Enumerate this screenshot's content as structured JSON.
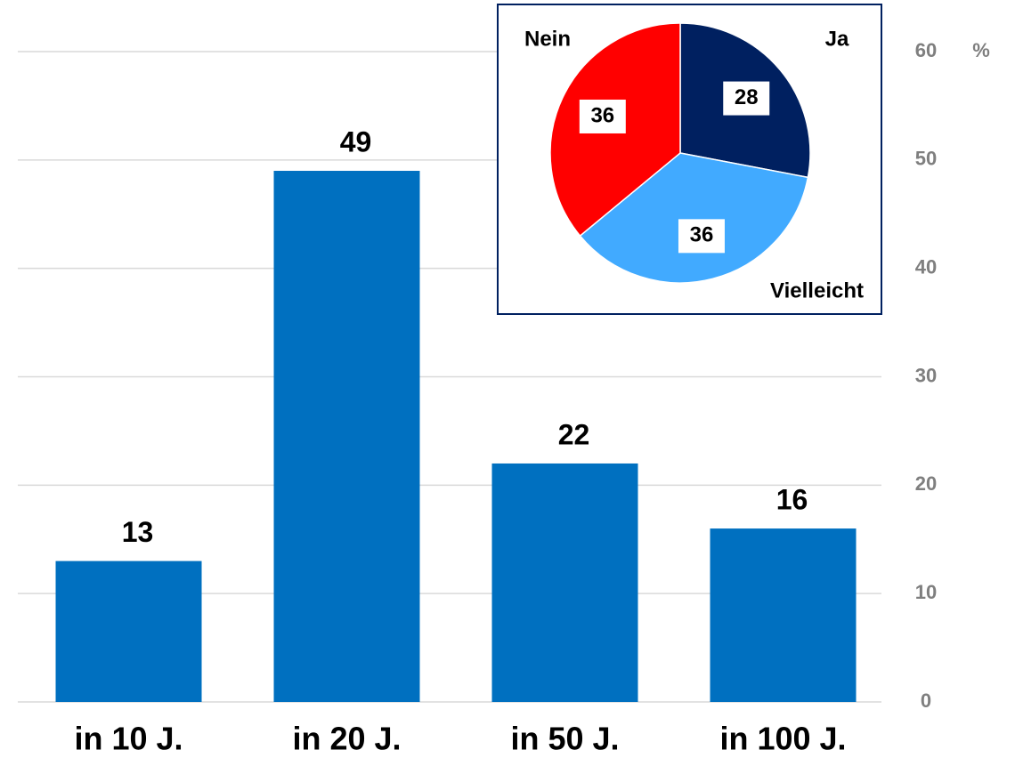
{
  "chart_data": [
    {
      "type": "bar",
      "categories": [
        "in 10 J.",
        "in 20 J.",
        "in 50 J.",
        "in 100 J."
      ],
      "values": [
        13,
        49,
        22,
        16
      ],
      "color": "#0070c0",
      "ylim": [
        0,
        60
      ],
      "yticks": [
        0,
        10,
        20,
        30,
        40,
        50,
        60
      ],
      "ylabel": "%",
      "grid": true
    },
    {
      "type": "pie",
      "categories": [
        "Ja",
        "Vielleicht",
        "Nein"
      ],
      "values": [
        28,
        36,
        36
      ],
      "colors": [
        "#002060",
        "#41aaff",
        "#ff0000"
      ]
    }
  ]
}
